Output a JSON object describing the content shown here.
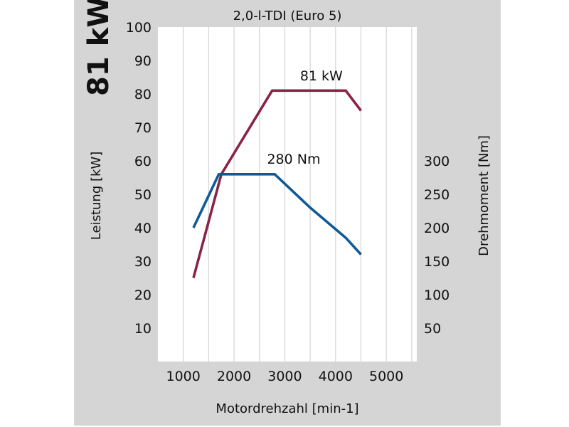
{
  "colors": {
    "panel_bg": "#d5d5d5",
    "plot_bg": "#ffffff",
    "grid": "#d5d5d5",
    "power_line": "#8a2447",
    "torque_line": "#0f5a96"
  },
  "chart_data": {
    "type": "line",
    "title": "2,0-l-TDI (Euro 5)",
    "headline": "81 kW",
    "xlabel": "Motordrehzahl [min-1]",
    "ylabel_left": "Leistung [kW]",
    "ylabel_right": "Drehmoment [Nm]",
    "xlim": [
      500,
      5600
    ],
    "xticks": [
      1000,
      2000,
      3000,
      4000,
      5000
    ],
    "ylim_left": [
      0,
      100
    ],
    "yticks_left": [
      10,
      20,
      30,
      40,
      50,
      60,
      70,
      80,
      90,
      100
    ],
    "ylim_right": [
      0,
      500
    ],
    "yticks_right": [
      50,
      100,
      150,
      200,
      250,
      300
    ],
    "grid": "vertical",
    "series": [
      {
        "axis": "left",
        "color": "#8a2447",
        "x": [
          1200,
          1750,
          2750,
          4200,
          4500
        ],
        "y": [
          25,
          56,
          81,
          81,
          75
        ]
      },
      {
        "axis": "right",
        "color": "#0f5a96",
        "x": [
          1200,
          1700,
          2800,
          3500,
          4200,
          4500
        ],
        "y": [
          200,
          280,
          280,
          230,
          185,
          160
        ]
      }
    ],
    "annotations": [
      {
        "text": "81 kW",
        "x": 3300,
        "y": 84,
        "axis": "left"
      },
      {
        "text": "280 Nm",
        "x": 2650,
        "y": 296,
        "axis": "right"
      }
    ]
  }
}
